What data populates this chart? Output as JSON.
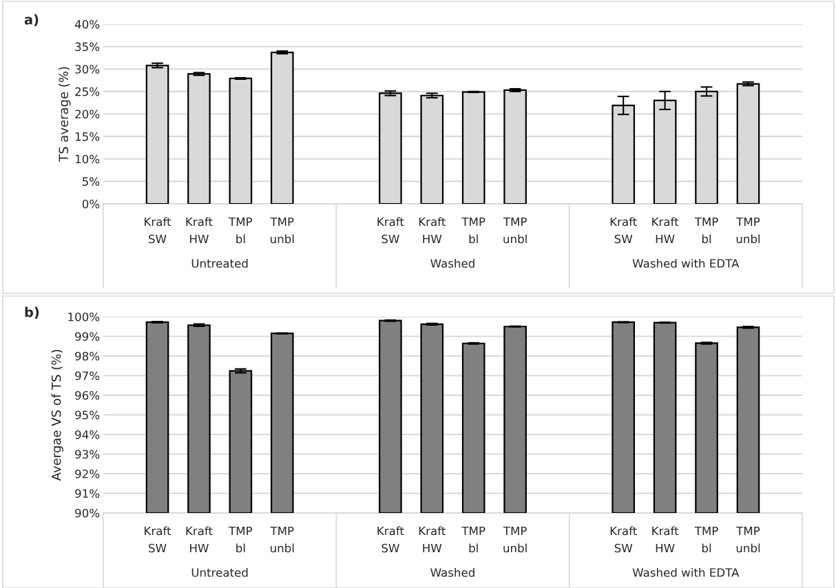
{
  "chart_data": [
    {
      "type": "bar",
      "title": "a)",
      "ylabel": "TS average (%)",
      "categories": [
        "Kraft SW",
        "Kraft HW",
        "TMP bl",
        "TMP unbl",
        "Kraft SW",
        "Kraft HW",
        "TMP bl",
        "TMP unbl",
        "Kraft SW",
        "Kraft HW",
        "TMP bl",
        "TMP unbl"
      ],
      "values": [
        30.8,
        28.9,
        27.9,
        33.7,
        24.6,
        24.1,
        24.9,
        25.3,
        21.9,
        23.0,
        25.0,
        26.7
      ],
      "errors": [
        0.5,
        0.3,
        0.15,
        0.3,
        0.5,
        0.5,
        0.1,
        0.3,
        2.0,
        2.0,
        1.0,
        0.4
      ],
      "color": "#d9d9d9",
      "ylim": [
        0,
        40
      ],
      "yticks": [
        {
          "value": 0,
          "label": "0%"
        },
        {
          "value": 5,
          "label": "5%"
        },
        {
          "value": 10,
          "label": "10%"
        },
        {
          "value": 15,
          "label": "15%"
        },
        {
          "value": 20,
          "label": "20%"
        },
        {
          "value": 25,
          "label": "25%"
        },
        {
          "value": 30,
          "label": "30%"
        },
        {
          "value": 35,
          "label": "35%"
        },
        {
          "value": 40,
          "label": "40%"
        }
      ],
      "grid": "y",
      "legend": false,
      "annotations": [
        "Untreated",
        "Washed",
        "Washed with EDTA"
      ]
    },
    {
      "type": "bar",
      "title": "b)",
      "ylabel": "Avergae VS of TS (%)",
      "categories": [
        "Kraft SW",
        "Kraft HW",
        "TMP bl",
        "TMP unbl",
        "Kraft SW",
        "Kraft HW",
        "TMP bl",
        "TMP unbl",
        "Kraft SW",
        "Kraft HW",
        "TMP bl",
        "TMP unbl"
      ],
      "values": [
        99.72,
        99.57,
        97.24,
        99.15,
        99.8,
        99.62,
        98.64,
        99.5,
        99.72,
        99.7,
        98.65,
        99.46
      ],
      "errors": [
        0.03,
        0.06,
        0.1,
        0.02,
        0.03,
        0.04,
        0.03,
        0.02,
        0.02,
        0.02,
        0.04,
        0.04
      ],
      "color": "#808080",
      "ylim": [
        90,
        100
      ],
      "yticks": [
        {
          "value": 90,
          "label": "90%"
        },
        {
          "value": 91,
          "label": "91%"
        },
        {
          "value": 92,
          "label": "92%"
        },
        {
          "value": 93,
          "label": "93%"
        },
        {
          "value": 94,
          "label": "94%"
        },
        {
          "value": 95,
          "label": "95%"
        },
        {
          "value": 96,
          "label": "96%"
        },
        {
          "value": 97,
          "label": "97%"
        },
        {
          "value": 98,
          "label": "98%"
        },
        {
          "value": 99,
          "label": "99%"
        },
        {
          "value": 100,
          "label": "100%"
        }
      ],
      "grid": "y",
      "legend": false,
      "annotations": [
        "Untreated",
        "Washed",
        "Washed with EDTA"
      ]
    }
  ]
}
